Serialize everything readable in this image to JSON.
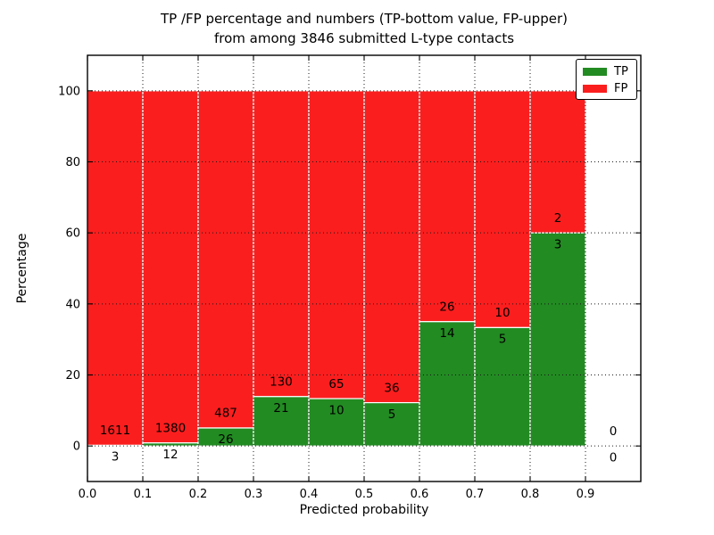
{
  "chart_data": {
    "type": "bar",
    "stacked_percentage": true,
    "title_line1": "TP /FP percentage and numbers (TP-bottom value, FP-upper)",
    "title_line2": "from among 3846 submitted L-type contacts",
    "xlabel": "Predicted probability",
    "ylabel": "Percentage",
    "xlim": [
      0.0,
      1.0
    ],
    "ylim": [
      -10,
      110
    ],
    "xticks": [
      "0.0",
      "0.1",
      "0.2",
      "0.3",
      "0.4",
      "0.5",
      "0.6",
      "0.7",
      "0.8",
      "0.9"
    ],
    "yticks": [
      0,
      20,
      40,
      60,
      80,
      100
    ],
    "grid": true,
    "bin_width": 0.1,
    "colors": {
      "tp": "#228B22",
      "fp": "#FB1E1E"
    },
    "legend": {
      "position": "upper-right",
      "entries": [
        {
          "label": "TP",
          "color": "#228B22"
        },
        {
          "label": "FP",
          "color": "#FB1E1E"
        }
      ]
    },
    "bins": [
      {
        "x_start": 0.0,
        "x_end": 0.1,
        "tp": 3,
        "fp": 1611
      },
      {
        "x_start": 0.1,
        "x_end": 0.2,
        "tp": 12,
        "fp": 1380
      },
      {
        "x_start": 0.2,
        "x_end": 0.3,
        "tp": 26,
        "fp": 487
      },
      {
        "x_start": 0.3,
        "x_end": 0.4,
        "tp": 21,
        "fp": 130
      },
      {
        "x_start": 0.4,
        "x_end": 0.5,
        "tp": 10,
        "fp": 65
      },
      {
        "x_start": 0.5,
        "x_end": 0.6,
        "tp": 5,
        "fp": 36
      },
      {
        "x_start": 0.6,
        "x_end": 0.7,
        "tp": 14,
        "fp": 26
      },
      {
        "x_start": 0.7,
        "x_end": 0.8,
        "tp": 5,
        "fp": 10
      },
      {
        "x_start": 0.8,
        "x_end": 0.9,
        "tp": 3,
        "fp": 2
      },
      {
        "x_start": 0.9,
        "x_end": 1.0,
        "tp": 0,
        "fp": 0
      }
    ]
  }
}
